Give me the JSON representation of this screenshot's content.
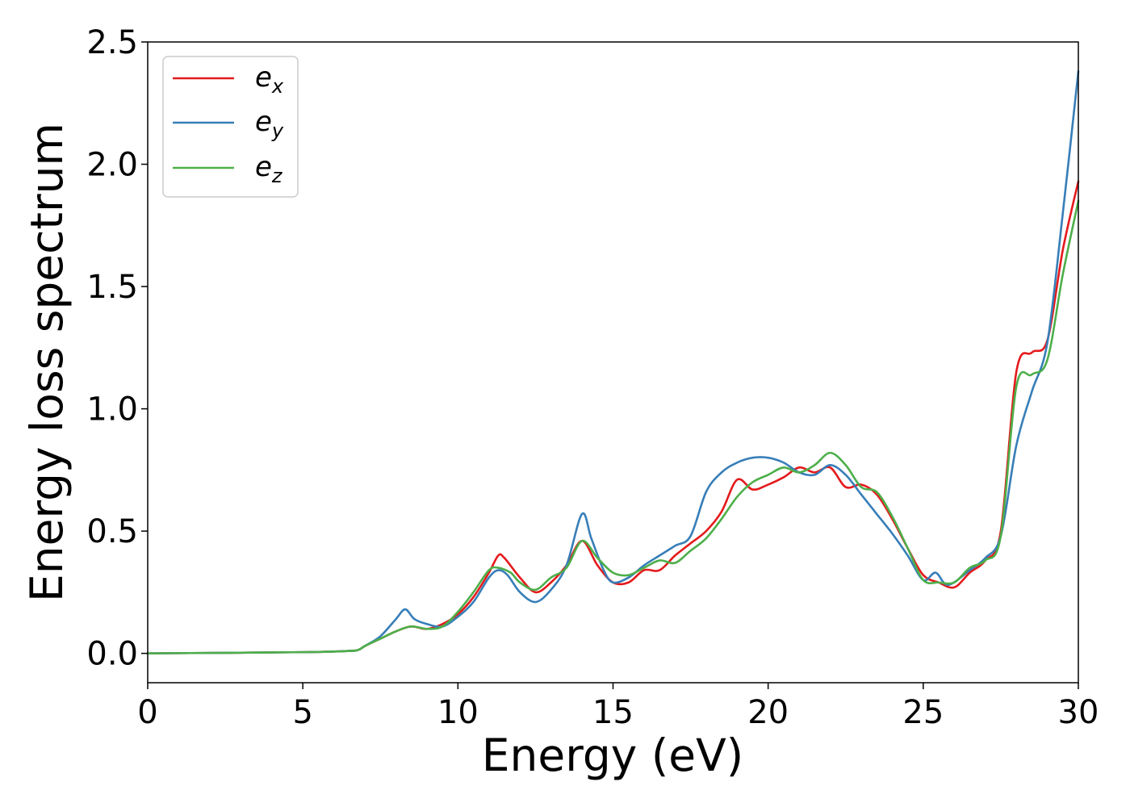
{
  "chart_data": {
    "type": "line",
    "xlabel": "Energy (eV)",
    "ylabel": "Energy loss spectrum",
    "xlim": [
      0,
      30
    ],
    "ylim": [
      -0.12,
      2.5
    ],
    "xticks": [
      0,
      5,
      10,
      15,
      20,
      25,
      30
    ],
    "xtick_labels": [
      "0",
      "5",
      "10",
      "15",
      "20",
      "25",
      "30"
    ],
    "yticks": [
      0.0,
      0.5,
      1.0,
      1.5,
      2.0,
      2.5
    ],
    "ytick_labels": [
      "0.0",
      "0.5",
      "1.0",
      "1.5",
      "2.0",
      "2.5"
    ],
    "grid": false,
    "legend_position": "top-left",
    "series": [
      {
        "name": "e",
        "subscript": "x",
        "color": "#e41a1c",
        "points": [
          [
            0,
            0
          ],
          [
            5,
            0.005
          ],
          [
            6.5,
            0.01
          ],
          [
            6.8,
            0.015
          ],
          [
            7,
            0.03
          ],
          [
            7.5,
            0.06
          ],
          [
            8,
            0.09
          ],
          [
            8.5,
            0.11
          ],
          [
            9,
            0.1
          ],
          [
            9.5,
            0.12
          ],
          [
            10,
            0.16
          ],
          [
            10.5,
            0.23
          ],
          [
            11,
            0.33
          ],
          [
            11.3,
            0.4
          ],
          [
            11.5,
            0.39
          ],
          [
            12,
            0.31
          ],
          [
            12.5,
            0.25
          ],
          [
            13,
            0.29
          ],
          [
            13.5,
            0.36
          ],
          [
            14,
            0.46
          ],
          [
            14.5,
            0.36
          ],
          [
            15,
            0.29
          ],
          [
            15.5,
            0.29
          ],
          [
            16,
            0.34
          ],
          [
            16.5,
            0.34
          ],
          [
            17,
            0.4
          ],
          [
            17.5,
            0.45
          ],
          [
            18,
            0.5
          ],
          [
            18.5,
            0.58
          ],
          [
            19,
            0.71
          ],
          [
            19.5,
            0.67
          ],
          [
            20,
            0.69
          ],
          [
            20.5,
            0.72
          ],
          [
            21,
            0.76
          ],
          [
            21.5,
            0.74
          ],
          [
            22,
            0.76
          ],
          [
            22.5,
            0.68
          ],
          [
            23,
            0.69
          ],
          [
            23.5,
            0.65
          ],
          [
            24,
            0.55
          ],
          [
            24.5,
            0.43
          ],
          [
            25,
            0.32
          ],
          [
            25.5,
            0.29
          ],
          [
            26,
            0.27
          ],
          [
            26.5,
            0.33
          ],
          [
            27,
            0.38
          ],
          [
            27.5,
            0.5
          ],
          [
            28,
            1.15
          ],
          [
            28.5,
            1.23
          ],
          [
            29,
            1.28
          ],
          [
            29.5,
            1.65
          ],
          [
            30,
            1.93
          ]
        ]
      },
      {
        "name": "e",
        "subscript": "y",
        "color": "#377eb8",
        "points": [
          [
            0,
            0
          ],
          [
            5,
            0.005
          ],
          [
            6.5,
            0.01
          ],
          [
            6.8,
            0.015
          ],
          [
            7,
            0.03
          ],
          [
            7.5,
            0.07
          ],
          [
            8,
            0.14
          ],
          [
            8.3,
            0.18
          ],
          [
            8.6,
            0.14
          ],
          [
            9,
            0.12
          ],
          [
            9.5,
            0.11
          ],
          [
            10,
            0.15
          ],
          [
            10.5,
            0.21
          ],
          [
            11,
            0.31
          ],
          [
            11.3,
            0.34
          ],
          [
            11.6,
            0.32
          ],
          [
            12,
            0.25
          ],
          [
            12.5,
            0.21
          ],
          [
            13,
            0.26
          ],
          [
            13.5,
            0.36
          ],
          [
            14,
            0.57
          ],
          [
            14.3,
            0.47
          ],
          [
            14.7,
            0.34
          ],
          [
            15,
            0.29
          ],
          [
            15.5,
            0.31
          ],
          [
            16,
            0.36
          ],
          [
            16.5,
            0.4
          ],
          [
            17,
            0.44
          ],
          [
            17.5,
            0.48
          ],
          [
            18,
            0.66
          ],
          [
            18.5,
            0.74
          ],
          [
            19,
            0.78
          ],
          [
            19.5,
            0.8
          ],
          [
            20,
            0.8
          ],
          [
            20.5,
            0.78
          ],
          [
            21,
            0.74
          ],
          [
            21.5,
            0.73
          ],
          [
            22,
            0.77
          ],
          [
            22.5,
            0.73
          ],
          [
            23,
            0.65
          ],
          [
            23.5,
            0.57
          ],
          [
            24,
            0.49
          ],
          [
            24.5,
            0.4
          ],
          [
            25,
            0.3
          ],
          [
            25.4,
            0.33
          ],
          [
            25.8,
            0.28
          ],
          [
            26.5,
            0.34
          ],
          [
            27,
            0.39
          ],
          [
            27.5,
            0.48
          ],
          [
            28,
            0.85
          ],
          [
            28.5,
            1.07
          ],
          [
            29,
            1.27
          ],
          [
            29.5,
            1.8
          ],
          [
            30,
            2.38
          ]
        ]
      },
      {
        "name": "e",
        "subscript": "z",
        "color": "#4daf4a",
        "points": [
          [
            0,
            0
          ],
          [
            5,
            0.005
          ],
          [
            6.5,
            0.01
          ],
          [
            6.8,
            0.015
          ],
          [
            7,
            0.03
          ],
          [
            7.5,
            0.06
          ],
          [
            8,
            0.09
          ],
          [
            8.5,
            0.11
          ],
          [
            9,
            0.1
          ],
          [
            9.5,
            0.11
          ],
          [
            10,
            0.17
          ],
          [
            10.5,
            0.25
          ],
          [
            11,
            0.34
          ],
          [
            11.3,
            0.35
          ],
          [
            11.7,
            0.33
          ],
          [
            12,
            0.29
          ],
          [
            12.5,
            0.26
          ],
          [
            13,
            0.31
          ],
          [
            13.5,
            0.35
          ],
          [
            14,
            0.46
          ],
          [
            14.5,
            0.39
          ],
          [
            15,
            0.33
          ],
          [
            15.5,
            0.32
          ],
          [
            16,
            0.35
          ],
          [
            16.5,
            0.38
          ],
          [
            17,
            0.37
          ],
          [
            17.5,
            0.42
          ],
          [
            18,
            0.47
          ],
          [
            18.5,
            0.55
          ],
          [
            19,
            0.64
          ],
          [
            19.5,
            0.7
          ],
          [
            20,
            0.73
          ],
          [
            20.5,
            0.76
          ],
          [
            21,
            0.74
          ],
          [
            21.5,
            0.77
          ],
          [
            22,
            0.82
          ],
          [
            22.5,
            0.77
          ],
          [
            23,
            0.68
          ],
          [
            23.5,
            0.66
          ],
          [
            24,
            0.56
          ],
          [
            24.5,
            0.43
          ],
          [
            25,
            0.3
          ],
          [
            25.5,
            0.29
          ],
          [
            26,
            0.29
          ],
          [
            26.5,
            0.35
          ],
          [
            27,
            0.38
          ],
          [
            27.5,
            0.48
          ],
          [
            28,
            1.09
          ],
          [
            28.5,
            1.14
          ],
          [
            29,
            1.2
          ],
          [
            29.5,
            1.55
          ],
          [
            30,
            1.85
          ]
        ]
      }
    ]
  }
}
